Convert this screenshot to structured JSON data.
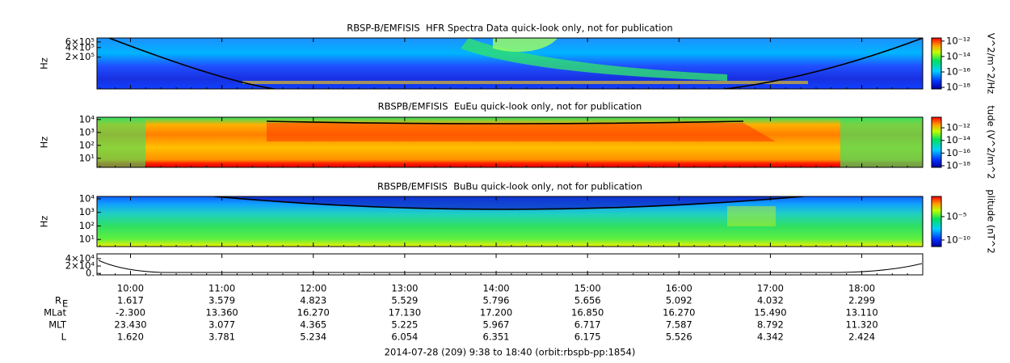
{
  "x_axis": {
    "xlim": [
      9.6333,
      18.6667
    ],
    "xticks": [
      {
        "value": 10,
        "label": "10:00"
      },
      {
        "value": 11,
        "label": "11:00"
      },
      {
        "value": 12,
        "label": "12:00"
      },
      {
        "value": 13,
        "label": "13:00"
      },
      {
        "value": 14,
        "label": "14:00"
      },
      {
        "value": 15,
        "label": "15:00"
      },
      {
        "value": 16,
        "label": "16:00"
      },
      {
        "value": 17,
        "label": "17:00"
      },
      {
        "value": 18,
        "label": "18:00"
      }
    ]
  },
  "panels": [
    {
      "title": "RBSP-B/EMFISIS  HFR Spectra Data quick-look only, not for publication",
      "ylabel": "Hz",
      "scale": "log",
      "ylim": [
        20000,
        800000
      ],
      "yticks": [
        {
          "value": 600000,
          "label": "6×10⁵"
        },
        {
          "value": 400000,
          "label": "4×10⁵"
        },
        {
          "value": 200000,
          "label": "2×10⁵"
        }
      ],
      "colorbar": {
        "label": "V^2/m^2/Hz",
        "lim": [
          6.3e-19,
          2.5e-12
        ],
        "ticks": [
          {
            "value": 1e-12,
            "label": "10⁻¹²"
          },
          {
            "value": 1e-14,
            "label": "10⁻¹⁴"
          },
          {
            "value": 1e-16,
            "label": "10⁻¹⁶"
          },
          {
            "value": 1e-18,
            "label": "10⁻¹⁸"
          }
        ]
      }
    },
    {
      "title": "RBSPB/EMFISIS  EuEu quick-look only, not for publication",
      "ylabel": "Hz",
      "scale": "log",
      "ylim": [
        2,
        15000
      ],
      "yticks": [
        {
          "value": 10000,
          "label": "10⁴"
        },
        {
          "value": 1000,
          "label": "10³"
        },
        {
          "value": 100,
          "label": "10²"
        },
        {
          "value": 10,
          "label": "10¹"
        }
      ],
      "colorbar": {
        "label": "tude (V^2/m^2",
        "lim": [
          5.5e-19,
          4.7e-11
        ],
        "ticks": [
          {
            "value": 1e-12,
            "label": "10⁻¹²"
          },
          {
            "value": 1e-14,
            "label": "10⁻¹⁴"
          },
          {
            "value": 1e-16,
            "label": "10⁻¹⁶"
          },
          {
            "value": 1e-18,
            "label": "10⁻¹⁸"
          }
        ]
      }
    },
    {
      "title": "RBSPB/EMFISIS  BuBu quick-look only, not for publication",
      "ylabel": "Hz",
      "scale": "log",
      "ylim": [
        3,
        15000
      ],
      "yticks": [
        {
          "value": 10000,
          "label": "10⁴"
        },
        {
          "value": 1000,
          "label": "10³"
        },
        {
          "value": 100,
          "label": "10²"
        },
        {
          "value": 10,
          "label": "10¹"
        }
      ],
      "colorbar": {
        "label": "plitude (nT^2",
        "lim": [
          4e-12,
          0.2
        ],
        "ticks": [
          {
            "value": 1e-05,
            "label": "10⁻⁵"
          },
          {
            "value": 1e-10,
            "label": "10⁻¹⁰"
          }
        ]
      }
    },
    {
      "scale": "linear",
      "ylim": [
        -4000,
        53000
      ],
      "yticks": [
        {
          "value": 40000,
          "label": "4×10⁴"
        },
        {
          "value": 20000,
          "label": "2×10⁴"
        },
        {
          "value": 0,
          "label": "0."
        }
      ]
    }
  ],
  "ephemeris": {
    "rows": [
      {
        "label": "R",
        "label_sub": "E",
        "values": [
          "1.617",
          "3.579",
          "4.823",
          "5.529",
          "5.796",
          "5.656",
          "5.092",
          "4.032",
          "2.299"
        ]
      },
      {
        "label": "MLat",
        "values": [
          "-2.300",
          "13.360",
          "16.270",
          "17.130",
          "17.200",
          "16.850",
          "16.270",
          "15.490",
          "13.110"
        ]
      },
      {
        "label": "MLT",
        "values": [
          "23.430",
          "3.077",
          "4.365",
          "5.225",
          "5.967",
          "6.717",
          "7.587",
          "8.792",
          "11.320"
        ]
      },
      {
        "label": "L",
        "values": [
          "1.620",
          "3.781",
          "5.234",
          "6.054",
          "6.351",
          "6.175",
          "5.526",
          "4.342",
          "2.424"
        ]
      }
    ]
  },
  "footer": "2014-07-28 (209) 9:38 to 18:40 (orbit:rbspb-pp:1854)"
}
